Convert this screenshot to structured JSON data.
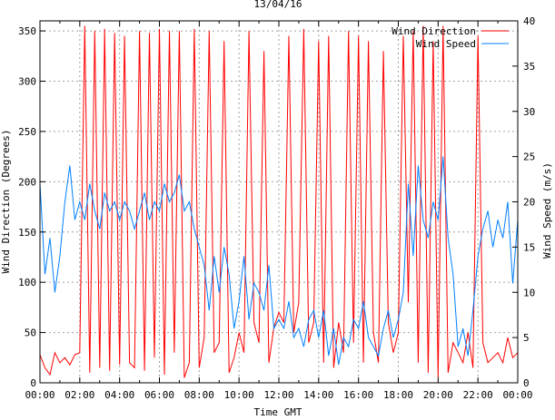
{
  "chart_data": {
    "type": "line",
    "title": "13/04/16",
    "xlabel": "Time GMT",
    "ylabel": "Wind Direction (Degrees)",
    "y2label": "Wind Speed (m/s)",
    "xlim": [
      0,
      24
    ],
    "ylim": [
      0,
      360
    ],
    "y2lim": [
      0,
      40
    ],
    "grid": true,
    "legend_position": "top-right",
    "x_tick_labels": [
      "00:00",
      "02:00",
      "04:00",
      "06:00",
      "08:00",
      "10:00",
      "12:00",
      "14:00",
      "16:00",
      "18:00",
      "20:00",
      "22:00",
      "00:00"
    ],
    "y_ticks": [
      0,
      50,
      100,
      150,
      200,
      250,
      300,
      350
    ],
    "y2_ticks": [
      0,
      5,
      10,
      15,
      20,
      25,
      30,
      35,
      40
    ],
    "x_step_hours": 0.25,
    "series": [
      {
        "name": "Wind Direction",
        "axis": "left",
        "color": "#ff0000",
        "values": [
          28,
          15,
          8,
          30,
          20,
          25,
          18,
          28,
          30,
          355,
          10,
          350,
          15,
          352,
          12,
          348,
          18,
          345,
          20,
          15,
          350,
          12,
          348,
          25,
          352,
          8,
          350,
          30,
          350,
          5,
          20,
          352,
          15,
          45,
          350,
          30,
          40,
          340,
          10,
          25,
          50,
          30,
          350,
          60,
          40,
          330,
          20,
          55,
          70,
          60,
          345,
          50,
          80,
          352,
          40,
          60,
          340,
          20,
          345,
          15,
          60,
          30,
          350,
          40,
          345,
          20,
          340,
          50,
          20,
          330,
          60,
          30,
          50,
          345,
          80,
          350,
          20,
          355,
          10,
          340,
          5,
          355,
          10,
          40,
          30,
          20,
          50,
          15,
          345,
          40,
          20,
          25,
          30,
          20,
          45,
          25,
          30
        ]
      },
      {
        "name": "Wind Speed",
        "axis": "right",
        "color": "#0080ff",
        "values": [
          22,
          12,
          16,
          10,
          14,
          20,
          24,
          18,
          20,
          18,
          22,
          19,
          17,
          21,
          19,
          20,
          18,
          20,
          19,
          17,
          19,
          21,
          18,
          20,
          19,
          22,
          20,
          21,
          23,
          19,
          20,
          17,
          15,
          13,
          8,
          14,
          10,
          15,
          12,
          6,
          9,
          14,
          7,
          11,
          10,
          8,
          13,
          6,
          7,
          6,
          9,
          5,
          6,
          4,
          7,
          8,
          5,
          8,
          3,
          6,
          2,
          5,
          4,
          7,
          6,
          9,
          5,
          4,
          3,
          6,
          8,
          5,
          7,
          10,
          22,
          14,
          24,
          18,
          16,
          20,
          18,
          25,
          16,
          12,
          4,
          6,
          3,
          8,
          14,
          17,
          19,
          15,
          18,
          16,
          20,
          11,
          18
        ]
      }
    ]
  }
}
